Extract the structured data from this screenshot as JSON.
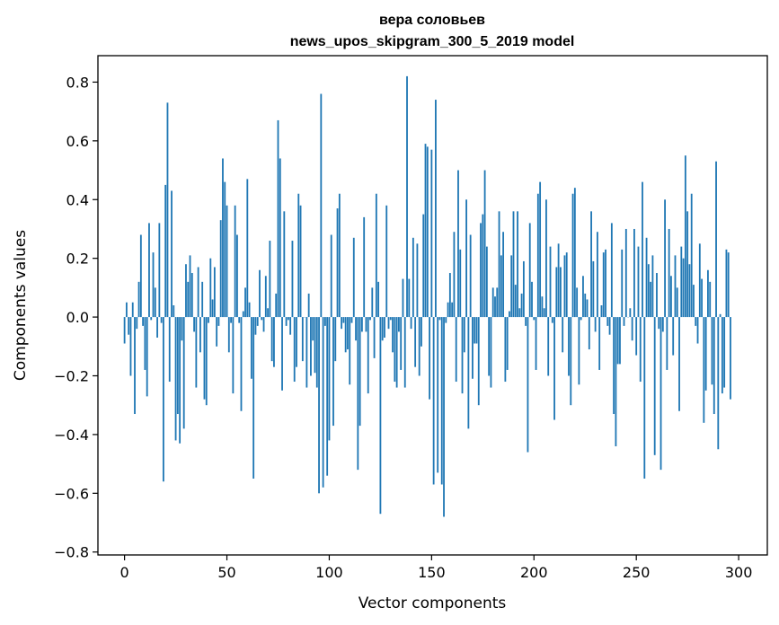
{
  "chart_data": {
    "type": "bar",
    "title": [
      "вера соловьев",
      "news_upos_skipgram_300_5_2019 model"
    ],
    "xlabel": "Vector components",
    "ylabel": "Components values",
    "xlim": [
      -13,
      314
    ],
    "ylim": [
      -0.81,
      0.89
    ],
    "xticks": [
      0,
      50,
      100,
      150,
      200,
      250,
      300
    ],
    "yticks": [
      -0.8,
      -0.6,
      -0.4,
      -0.2,
      0.0,
      0.2,
      0.4,
      0.6,
      0.8
    ],
    "ytick_labels": [
      "−0.8",
      "−0.6",
      "−0.4",
      "−0.2",
      "0.0",
      "0.2",
      "0.4",
      "0.6",
      "0.8"
    ],
    "bar_color": "#1f77b4",
    "grid": false,
    "values": [
      -0.09,
      0.05,
      -0.06,
      -0.2,
      0.05,
      -0.33,
      -0.04,
      0.12,
      0.28,
      -0.03,
      -0.18,
      -0.27,
      0.32,
      -0.01,
      0.22,
      0.1,
      -0.07,
      0.32,
      -0.02,
      -0.56,
      0.45,
      0.73,
      -0.22,
      0.43,
      0.04,
      -0.42,
      -0.33,
      -0.43,
      -0.08,
      -0.38,
      0.18,
      0.12,
      0.21,
      0.15,
      -0.05,
      -0.24,
      0.17,
      -0.12,
      0.12,
      -0.28,
      -0.3,
      -0.02,
      0.2,
      0.06,
      0.17,
      -0.1,
      -0.03,
      0.33,
      0.54,
      0.46,
      0.38,
      -0.12,
      -0.02,
      -0.26,
      0.38,
      0.28,
      -0.02,
      -0.32,
      0.02,
      0.1,
      0.47,
      0.05,
      -0.21,
      -0.55,
      -0.06,
      -0.03,
      0.16,
      -0.01,
      -0.05,
      0.14,
      0.03,
      0.26,
      -0.15,
      -0.17,
      0.08,
      0.67,
      0.54,
      -0.25,
      0.36,
      -0.03,
      -0.01,
      -0.06,
      0.26,
      -0.22,
      -0.17,
      0.42,
      0.38,
      -0.15,
      0.0,
      -0.24,
      0.08,
      -0.2,
      -0.08,
      -0.19,
      -0.24,
      -0.6,
      0.76,
      -0.58,
      -0.03,
      -0.54,
      -0.42,
      0.28,
      -0.37,
      -0.15,
      0.37,
      0.42,
      -0.04,
      -0.02,
      -0.12,
      -0.11,
      -0.23,
      -0.02,
      0.27,
      -0.08,
      -0.52,
      -0.37,
      -0.05,
      0.34,
      -0.05,
      -0.26,
      -0.01,
      0.1,
      -0.14,
      0.42,
      0.12,
      -0.67,
      -0.08,
      -0.07,
      0.38,
      -0.04,
      -0.01,
      -0.12,
      -0.22,
      -0.24,
      -0.05,
      -0.18,
      0.13,
      -0.24,
      0.82,
      0.13,
      -0.04,
      0.27,
      -0.17,
      0.25,
      -0.2,
      -0.1,
      0.35,
      0.59,
      0.58,
      -0.28,
      0.57,
      -0.57,
      0.74,
      -0.53,
      -0.01,
      -0.57,
      -0.68,
      -0.02,
      0.05,
      0.15,
      0.05,
      0.29,
      -0.22,
      0.5,
      0.23,
      -0.26,
      -0.12,
      0.4,
      -0.38,
      0.28,
      -0.21,
      -0.09,
      -0.09,
      -0.3,
      0.32,
      0.35,
      0.5,
      0.24,
      -0.2,
      -0.24,
      0.1,
      0.07,
      0.1,
      0.36,
      0.21,
      0.29,
      -0.22,
      -0.18,
      0.02,
      0.21,
      0.36,
      0.11,
      0.36,
      0.03,
      0.08,
      0.19,
      -0.03,
      -0.46,
      0.32,
      0.12,
      -0.01,
      -0.18,
      0.42,
      0.46,
      0.07,
      0.03,
      0.4,
      -0.2,
      0.24,
      -0.02,
      -0.35,
      0.17,
      0.25,
      0.17,
      -0.12,
      0.21,
      0.22,
      -0.2,
      -0.3,
      0.42,
      0.44,
      0.1,
      -0.23,
      -0.01,
      0.14,
      0.08,
      0.06,
      -0.11,
      0.36,
      0.19,
      -0.05,
      0.29,
      -0.18,
      0.04,
      0.22,
      0.23,
      -0.03,
      -0.06,
      0.32,
      -0.33,
      -0.44,
      -0.16,
      -0.16,
      0.23,
      -0.03,
      0.3,
      0.0,
      0.03,
      -0.08,
      0.3,
      -0.13,
      0.24,
      -0.22,
      0.46,
      -0.55,
      0.27,
      0.18,
      0.12,
      0.21,
      -0.47,
      0.15,
      -0.04,
      -0.52,
      -0.05,
      0.4,
      -0.18,
      0.3,
      0.14,
      -0.13,
      0.21,
      0.1,
      -0.32,
      0.24,
      0.2,
      0.55,
      0.36,
      0.18,
      0.42,
      0.11,
      -0.03,
      -0.09,
      0.25,
      0.13,
      -0.36,
      -0.25,
      0.16,
      0.12,
      -0.23,
      -0.33,
      0.53,
      -0.45,
      0.01,
      -0.26,
      -0.24,
      0.23,
      0.22,
      -0.28
    ]
  }
}
